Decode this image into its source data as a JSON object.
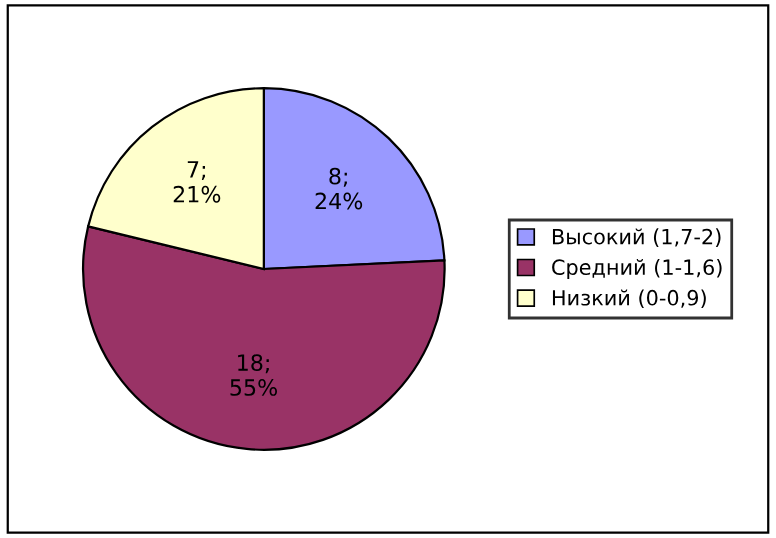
{
  "chart_data": {
    "type": "pie",
    "categories": [
      "Высокий (1,7-2)",
      "Средний (1-1,6)",
      "Низкий (0-0,9)"
    ],
    "values": [
      8,
      18,
      7
    ],
    "colors": [
      "#9999ff",
      "#993366",
      "#ffffcc"
    ],
    "value_labels": [
      "8;\n24%",
      "18;\n55%",
      "7;\n21%"
    ],
    "legend": "right"
  }
}
